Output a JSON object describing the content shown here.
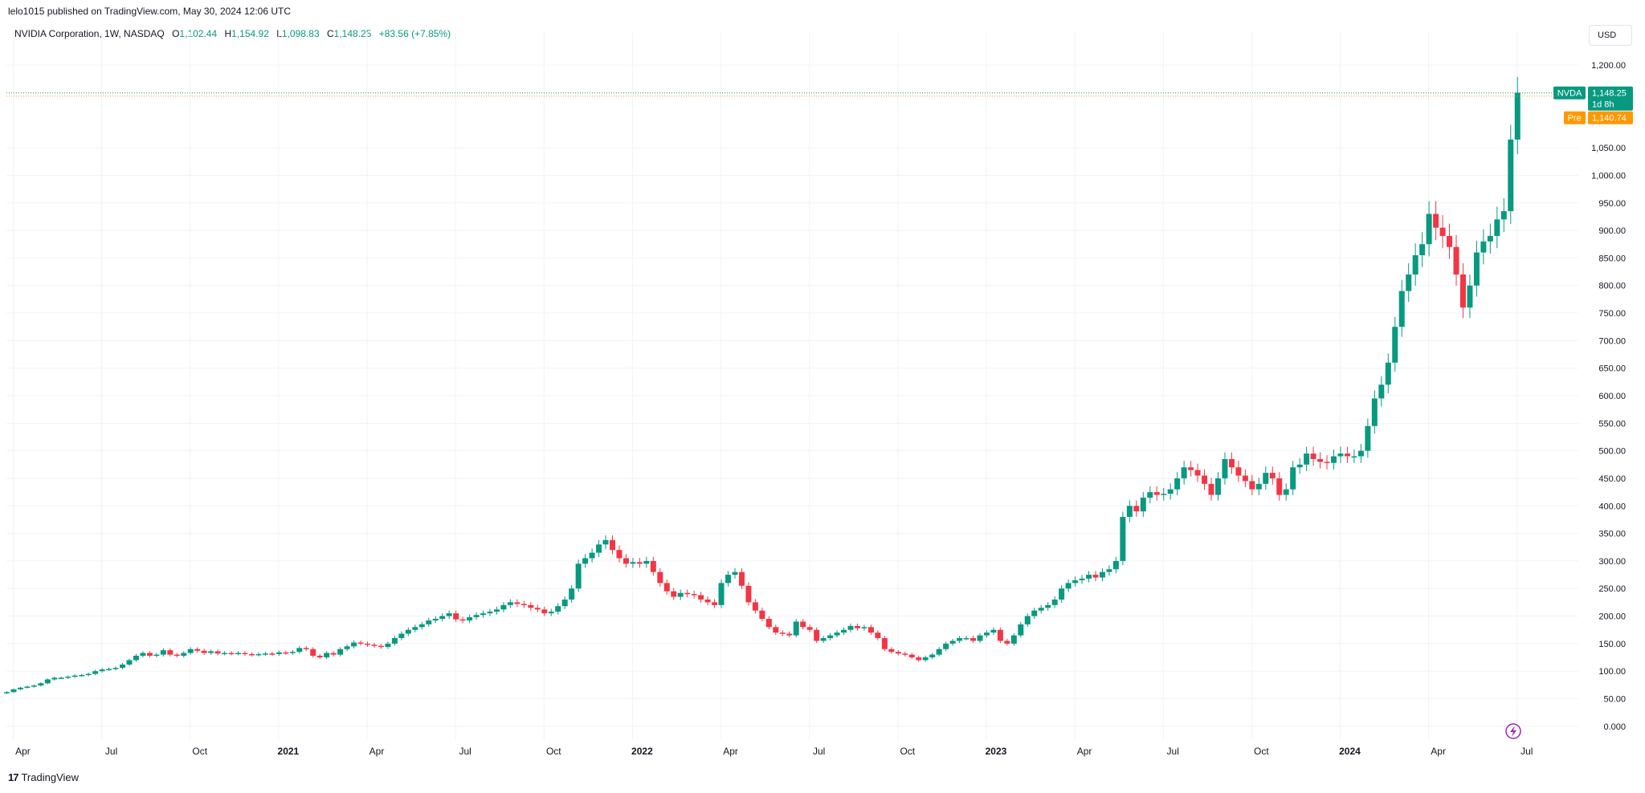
{
  "publish": {
    "text": "lelo1015 published on TradingView.com, May 30, 2024 12:06 UTC"
  },
  "legend": {
    "symbol": "NVIDIA Corporation, 1W, NASDAQ",
    "open_label": "O",
    "open_value": "1,102.44",
    "high_label": "H",
    "high_value": "1,154.92",
    "low_label": "L",
    "low_value": "1,098.83",
    "close_label": "C",
    "close_value": "1,148.25",
    "change": "+83.56 (+7.85%)"
  },
  "currency": "USD",
  "footer": {
    "logo_mark": "17",
    "brand": "TradingView"
  },
  "colors": {
    "up": "#089981",
    "down": "#f23645",
    "pre": "#ff9800",
    "grid": "#f0f3fa",
    "axis_text": "#131722"
  },
  "price_tags": [
    {
      "label": "NVDA",
      "value": "1,148.25",
      "sub": "1d 8h",
      "color": "#089981",
      "price": 1148.25
    },
    {
      "label": "Pre",
      "value": "1,140.74",
      "color": "#ff9800",
      "price": 1140.74
    }
  ],
  "chart_data": {
    "type": "candlestick",
    "timeframe": "1W",
    "ylim": [
      -25,
      1260
    ],
    "y_ticks": [
      {
        "value": 0,
        "label": "0.000"
      },
      {
        "value": 50,
        "label": "50.00"
      },
      {
        "value": 100,
        "label": "100.00"
      },
      {
        "value": 150,
        "label": "150.00"
      },
      {
        "value": 200,
        "label": "200.00"
      },
      {
        "value": 250,
        "label": "250.00"
      },
      {
        "value": 300,
        "label": "300.00"
      },
      {
        "value": 350,
        "label": "350.00"
      },
      {
        "value": 400,
        "label": "400.00"
      },
      {
        "value": 450,
        "label": "450.00"
      },
      {
        "value": 500,
        "label": "500.00"
      },
      {
        "value": 550,
        "label": "550.00"
      },
      {
        "value": 600,
        "label": "600.00"
      },
      {
        "value": 650,
        "label": "650.00"
      },
      {
        "value": 700,
        "label": "700.00"
      },
      {
        "value": 750,
        "label": "750.00"
      },
      {
        "value": 800,
        "label": "800.00"
      },
      {
        "value": 850,
        "label": "850.00"
      },
      {
        "value": 900,
        "label": "900.00"
      },
      {
        "value": 950,
        "label": "950.00"
      },
      {
        "value": 1000,
        "label": "1,000.00"
      },
      {
        "value": 1050,
        "label": "1,050.00"
      },
      {
        "value": 1200,
        "label": "1,200.00"
      }
    ],
    "x_ticks": [
      {
        "week": 1,
        "label": "Apr",
        "bold": false
      },
      {
        "week": 14,
        "label": "Jul",
        "bold": false
      },
      {
        "week": 27,
        "label": "Oct",
        "bold": false
      },
      {
        "week": 40,
        "label": "2021",
        "bold": true
      },
      {
        "week": 53,
        "label": "Apr",
        "bold": false
      },
      {
        "week": 66,
        "label": "Jul",
        "bold": false
      },
      {
        "week": 79,
        "label": "Oct",
        "bold": false
      },
      {
        "week": 92,
        "label": "2022",
        "bold": true
      },
      {
        "week": 105,
        "label": "Apr",
        "bold": false
      },
      {
        "week": 118,
        "label": "Jul",
        "bold": false
      },
      {
        "week": 131,
        "label": "Oct",
        "bold": false
      },
      {
        "week": 144,
        "label": "2023",
        "bold": true
      },
      {
        "week": 157,
        "label": "Apr",
        "bold": false
      },
      {
        "week": 170,
        "label": "Jul",
        "bold": false
      },
      {
        "week": 183,
        "label": "Oct",
        "bold": false
      },
      {
        "week": 196,
        "label": "2024",
        "bold": true
      },
      {
        "week": 209,
        "label": "Apr",
        "bold": false
      },
      {
        "week": 222,
        "label": "Jul",
        "bold": false
      }
    ],
    "x_range": [
      0,
      231
    ],
    "weekly_close": [
      62,
      67,
      70,
      72,
      74,
      78,
      85,
      88,
      88,
      90,
      92,
      93,
      95,
      100,
      103,
      104,
      106,
      112,
      120,
      128,
      133,
      128,
      130,
      138,
      130,
      128,
      133,
      140,
      137,
      133,
      136,
      132,
      133,
      132,
      133,
      131,
      130,
      131,
      132,
      131,
      134,
      133,
      135,
      142,
      140,
      128,
      125,
      133,
      130,
      140,
      145,
      152,
      150,
      148,
      146,
      144,
      150,
      160,
      168,
      175,
      180,
      185,
      192,
      195,
      200,
      205,
      194,
      192,
      198,
      202,
      205,
      208,
      212,
      220,
      225,
      222,
      220,
      215,
      212,
      205,
      208,
      218,
      230,
      250,
      295,
      305,
      315,
      330,
      338,
      320,
      305,
      295,
      298,
      295,
      300,
      280,
      260,
      245,
      235,
      242,
      240,
      238,
      230,
      225,
      220,
      260,
      275,
      280,
      255,
      225,
      210,
      195,
      180,
      170,
      168,
      165,
      190,
      180,
      175,
      155,
      160,
      165,
      170,
      175,
      182,
      178,
      180,
      170,
      160,
      140,
      135,
      132,
      130,
      125,
      120,
      125,
      130,
      140,
      150,
      155,
      160,
      160,
      155,
      165,
      170,
      175,
      155,
      150,
      165,
      185,
      200,
      210,
      215,
      220,
      230,
      250,
      260,
      265,
      268,
      275,
      270,
      280,
      285,
      300,
      380,
      400,
      390,
      415,
      425,
      420,
      422,
      430,
      450,
      470,
      465,
      455,
      440,
      420,
      450,
      485,
      470,
      455,
      445,
      430,
      440,
      460,
      450,
      420,
      430,
      470,
      475,
      495,
      485,
      480,
      478,
      490,
      495,
      490,
      490,
      500,
      545,
      595,
      620,
      660,
      725,
      790,
      820,
      855,
      875,
      930,
      905,
      890,
      870,
      820,
      760,
      800,
      860,
      880,
      890,
      920,
      935,
      1065,
      1150
    ],
    "start_week": 0,
    "series": [
      {
        "name": "NVDA",
        "values": "weekly_close"
      }
    ]
  }
}
